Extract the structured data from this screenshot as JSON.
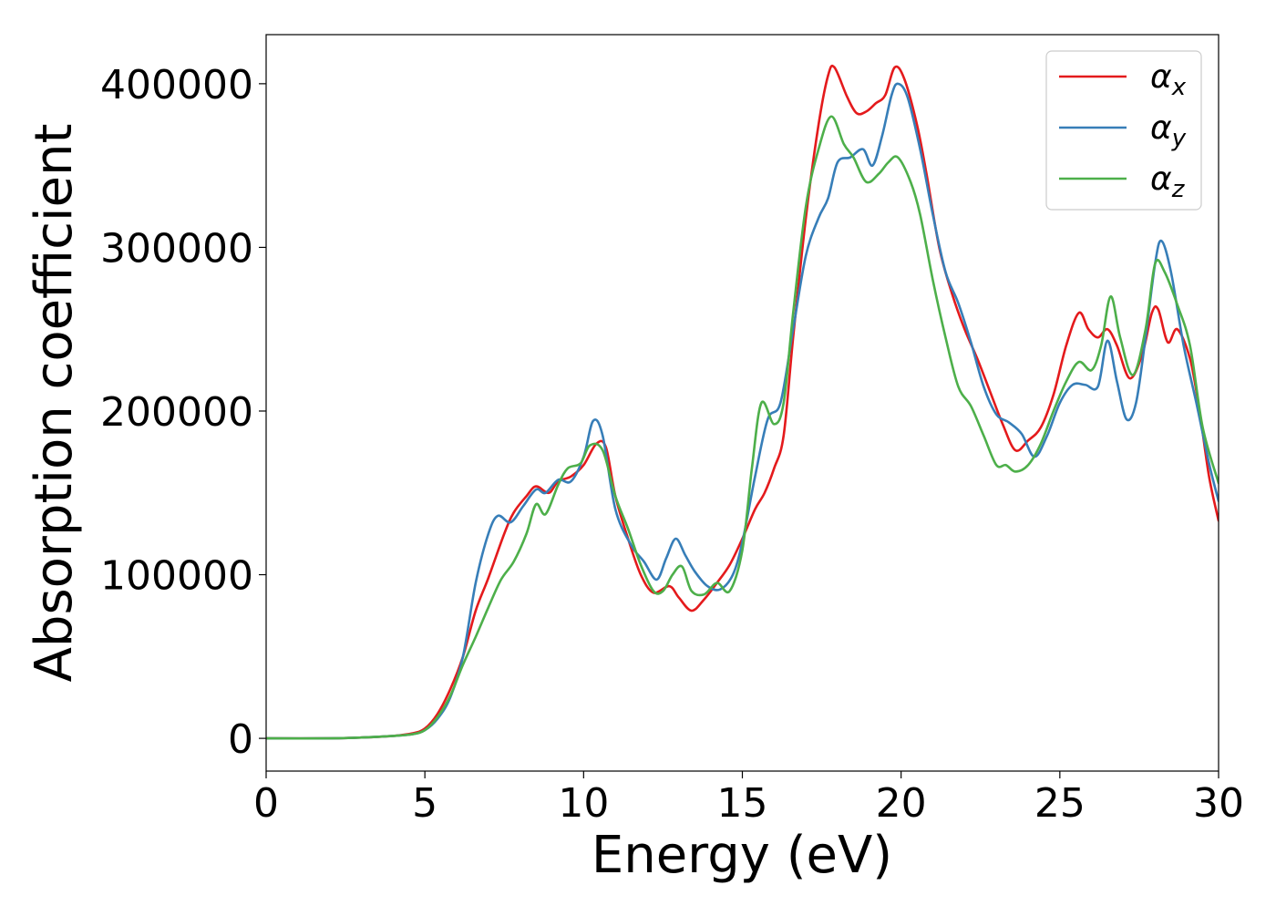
{
  "chart_data": {
    "type": "line",
    "title": "",
    "xlabel": "Energy (eV)",
    "ylabel": "Absorption coefficient",
    "xlim": [
      0,
      30
    ],
    "ylim": [
      -20000,
      430000
    ],
    "xticks": [
      0,
      5,
      10,
      15,
      20,
      25,
      30
    ],
    "xtick_labels": [
      "0",
      "5",
      "10",
      "15",
      "20",
      "25",
      "30"
    ],
    "yticks": [
      0,
      100000,
      200000,
      300000,
      400000
    ],
    "ytick_labels": [
      "0",
      "100000",
      "200000",
      "300000",
      "400000"
    ],
    "grid": false,
    "legend_position": "top-right",
    "series": [
      {
        "name": "α_x",
        "color": "#e41a1c",
        "points": [
          [
            0,
            0
          ],
          [
            2,
            0
          ],
          [
            3,
            500
          ],
          [
            4,
            1500
          ],
          [
            4.6,
            3000
          ],
          [
            5,
            6000
          ],
          [
            5.4,
            15000
          ],
          [
            5.8,
            30000
          ],
          [
            6.2,
            50000
          ],
          [
            6.6,
            78000
          ],
          [
            7,
            98000
          ],
          [
            7.5,
            125000
          ],
          [
            7.8,
            138000
          ],
          [
            8.2,
            148000
          ],
          [
            8.5,
            154000
          ],
          [
            8.9,
            150000
          ],
          [
            9.2,
            157000
          ],
          [
            9.6,
            160000
          ],
          [
            10,
            167000
          ],
          [
            10.4,
            180000
          ],
          [
            10.7,
            178000
          ],
          [
            11,
            148000
          ],
          [
            11.4,
            122000
          ],
          [
            11.8,
            100000
          ],
          [
            12.2,
            89000
          ],
          [
            12.7,
            93000
          ],
          [
            13,
            86000
          ],
          [
            13.4,
            78000
          ],
          [
            13.8,
            85000
          ],
          [
            14.2,
            95000
          ],
          [
            14.6,
            106000
          ],
          [
            15,
            122000
          ],
          [
            15.4,
            140000
          ],
          [
            15.7,
            150000
          ],
          [
            16,
            165000
          ],
          [
            16.3,
            185000
          ],
          [
            16.6,
            245000
          ],
          [
            17,
            318000
          ],
          [
            17.4,
            375000
          ],
          [
            17.7,
            405000
          ],
          [
            17.9,
            410000
          ],
          [
            18.3,
            392000
          ],
          [
            18.6,
            382000
          ],
          [
            18.9,
            383000
          ],
          [
            19.2,
            388000
          ],
          [
            19.5,
            393000
          ],
          [
            19.8,
            410000
          ],
          [
            20.1,
            403000
          ],
          [
            20.5,
            375000
          ],
          [
            20.8,
            345000
          ],
          [
            21.2,
            300000
          ],
          [
            21.6,
            272000
          ],
          [
            22,
            250000
          ],
          [
            22.4,
            232000
          ],
          [
            22.8,
            212000
          ],
          [
            23.2,
            192000
          ],
          [
            23.6,
            176000
          ],
          [
            24,
            182000
          ],
          [
            24.4,
            190000
          ],
          [
            24.8,
            210000
          ],
          [
            25.2,
            240000
          ],
          [
            25.6,
            260000
          ],
          [
            25.9,
            250000
          ],
          [
            26.2,
            245000
          ],
          [
            26.5,
            250000
          ],
          [
            26.8,
            240000
          ],
          [
            27.2,
            220000
          ],
          [
            27.6,
            235000
          ],
          [
            27.9,
            260000
          ],
          [
            28.1,
            262000
          ],
          [
            28.4,
            242000
          ],
          [
            28.7,
            250000
          ],
          [
            29.1,
            232000
          ],
          [
            29.4,
            200000
          ],
          [
            29.7,
            160000
          ],
          [
            30,
            133000
          ]
        ]
      },
      {
        "name": "α_y",
        "color": "#377eb8",
        "points": [
          [
            0,
            0
          ],
          [
            2,
            0
          ],
          [
            3,
            500
          ],
          [
            4,
            1500
          ],
          [
            4.6,
            2500
          ],
          [
            5,
            5000
          ],
          [
            5.4,
            12000
          ],
          [
            5.8,
            25000
          ],
          [
            6.2,
            50000
          ],
          [
            6.6,
            95000
          ],
          [
            7,
            125000
          ],
          [
            7.3,
            136000
          ],
          [
            7.7,
            132000
          ],
          [
            8.1,
            142000
          ],
          [
            8.5,
            152000
          ],
          [
            8.8,
            150000
          ],
          [
            9.2,
            158000
          ],
          [
            9.6,
            157000
          ],
          [
            10,
            172000
          ],
          [
            10.3,
            194000
          ],
          [
            10.6,
            185000
          ],
          [
            11,
            140000
          ],
          [
            11.5,
            118000
          ],
          [
            11.9,
            108000
          ],
          [
            12.3,
            97000
          ],
          [
            12.6,
            110000
          ],
          [
            12.9,
            122000
          ],
          [
            13.2,
            112000
          ],
          [
            13.5,
            102000
          ],
          [
            13.9,
            93000
          ],
          [
            14.3,
            91000
          ],
          [
            14.7,
            100000
          ],
          [
            15,
            120000
          ],
          [
            15.4,
            160000
          ],
          [
            15.8,
            195000
          ],
          [
            16.2,
            205000
          ],
          [
            16.6,
            250000
          ],
          [
            17,
            295000
          ],
          [
            17.4,
            318000
          ],
          [
            17.7,
            330000
          ],
          [
            18,
            352000
          ],
          [
            18.4,
            355000
          ],
          [
            18.8,
            360000
          ],
          [
            19.1,
            350000
          ],
          [
            19.4,
            368000
          ],
          [
            19.7,
            393000
          ],
          [
            19.9,
            400000
          ],
          [
            20.2,
            392000
          ],
          [
            20.6,
            360000
          ],
          [
            21,
            320000
          ],
          [
            21.4,
            285000
          ],
          [
            21.8,
            266000
          ],
          [
            22.2,
            242000
          ],
          [
            22.6,
            215000
          ],
          [
            23,
            198000
          ],
          [
            23.4,
            193000
          ],
          [
            23.8,
            186000
          ],
          [
            24.2,
            172000
          ],
          [
            24.6,
            185000
          ],
          [
            25,
            205000
          ],
          [
            25.4,
            216000
          ],
          [
            25.8,
            216000
          ],
          [
            26.2,
            215000
          ],
          [
            26.5,
            243000
          ],
          [
            26.8,
            218000
          ],
          [
            27.1,
            195000
          ],
          [
            27.4,
            205000
          ],
          [
            27.7,
            245000
          ],
          [
            28,
            290000
          ],
          [
            28.2,
            304000
          ],
          [
            28.5,
            285000
          ],
          [
            28.9,
            240000
          ],
          [
            29.3,
            205000
          ],
          [
            29.7,
            168000
          ],
          [
            30,
            145000
          ]
        ]
      },
      {
        "name": "α_z",
        "color": "#4daf4a",
        "points": [
          [
            0,
            0
          ],
          [
            2,
            0
          ],
          [
            3,
            500
          ],
          [
            4,
            1500
          ],
          [
            4.6,
            2500
          ],
          [
            5,
            5000
          ],
          [
            5.4,
            13000
          ],
          [
            5.8,
            26000
          ],
          [
            6.2,
            45000
          ],
          [
            6.6,
            62000
          ],
          [
            7,
            80000
          ],
          [
            7.4,
            97000
          ],
          [
            7.8,
            108000
          ],
          [
            8.2,
            125000
          ],
          [
            8.5,
            143000
          ],
          [
            8.8,
            137000
          ],
          [
            9.2,
            155000
          ],
          [
            9.5,
            165000
          ],
          [
            9.9,
            168000
          ],
          [
            10.2,
            179000
          ],
          [
            10.6,
            176000
          ],
          [
            11,
            148000
          ],
          [
            11.4,
            128000
          ],
          [
            11.8,
            106000
          ],
          [
            12.2,
            90000
          ],
          [
            12.5,
            90000
          ],
          [
            12.8,
            100000
          ],
          [
            13.1,
            105000
          ],
          [
            13.4,
            90000
          ],
          [
            13.8,
            88000
          ],
          [
            14.2,
            95000
          ],
          [
            14.6,
            90000
          ],
          [
            15,
            115000
          ],
          [
            15.3,
            165000
          ],
          [
            15.6,
            205000
          ],
          [
            16,
            192000
          ],
          [
            16.3,
            205000
          ],
          [
            16.6,
            260000
          ],
          [
            17,
            325000
          ],
          [
            17.4,
            360000
          ],
          [
            17.8,
            380000
          ],
          [
            18.2,
            363000
          ],
          [
            18.5,
            355000
          ],
          [
            18.9,
            340000
          ],
          [
            19.3,
            345000
          ],
          [
            19.6,
            352000
          ],
          [
            19.9,
            355000
          ],
          [
            20.3,
            340000
          ],
          [
            20.6,
            320000
          ],
          [
            21,
            280000
          ],
          [
            21.4,
            245000
          ],
          [
            21.8,
            215000
          ],
          [
            22.2,
            203000
          ],
          [
            22.6,
            185000
          ],
          [
            23,
            167000
          ],
          [
            23.3,
            167000
          ],
          [
            23.6,
            163000
          ],
          [
            24,
            167000
          ],
          [
            24.4,
            180000
          ],
          [
            24.8,
            200000
          ],
          [
            25.2,
            218000
          ],
          [
            25.6,
            230000
          ],
          [
            26,
            225000
          ],
          [
            26.3,
            240000
          ],
          [
            26.6,
            270000
          ],
          [
            26.9,
            245000
          ],
          [
            27.3,
            222000
          ],
          [
            27.7,
            250000
          ],
          [
            28,
            290000
          ],
          [
            28.3,
            285000
          ],
          [
            28.7,
            265000
          ],
          [
            29.1,
            240000
          ],
          [
            29.5,
            190000
          ],
          [
            30,
            156000
          ]
        ]
      }
    ]
  }
}
